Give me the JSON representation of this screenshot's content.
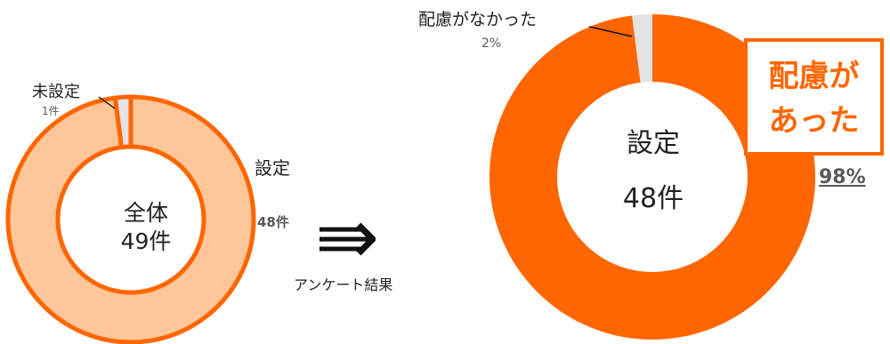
{
  "colors": {
    "orange": "#ff6600",
    "light_orange": "#ffc699",
    "gray": "#e4e4e4",
    "dark": "#595959"
  },
  "left": {
    "center_line1": "全体",
    "center_line2": "49件",
    "unset_label": "未設定",
    "unset_count": "1件",
    "set_label": "設定",
    "set_count": "48件"
  },
  "arrow_symbol": "⇛",
  "arrow_caption": "アンケート結果",
  "right": {
    "center_line1": "設定",
    "center_line2": "48件",
    "no_consider_label": "配慮がなかった",
    "no_consider_pct": "2%",
    "consider_line1": "配慮が",
    "consider_line2": "あった",
    "consider_pct": "98%"
  },
  "chart_data": [
    {
      "type": "pie",
      "center_text": [
        "全体",
        "49件"
      ],
      "slices": [
        {
          "label": "設定",
          "value": 48,
          "display": "48件",
          "color": "#ffc699"
        },
        {
          "label": "未設定",
          "value": 1,
          "display": "1件",
          "color": "#e4e4e4"
        }
      ]
    },
    {
      "type": "pie",
      "center_text": [
        "設定",
        "48件"
      ],
      "slices": [
        {
          "label": "配慮があった",
          "value": 98,
          "display": "98%",
          "color": "#ff6600"
        },
        {
          "label": "配慮がなかった",
          "value": 2,
          "display": "2%",
          "color": "#e4e4e4"
        }
      ]
    }
  ]
}
